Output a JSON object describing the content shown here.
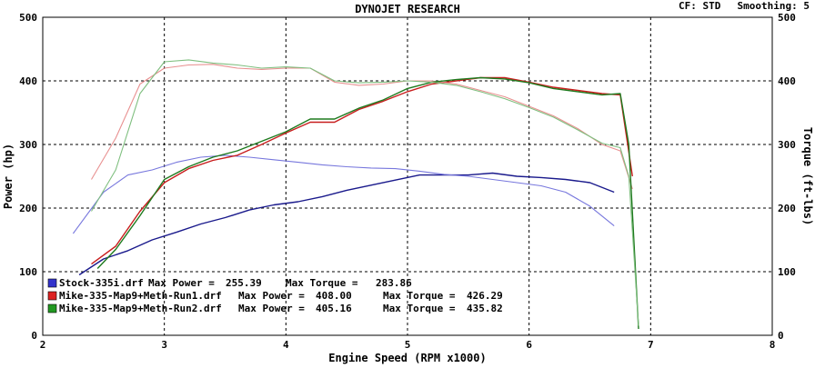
{
  "header": {
    "title": "DYNOJET RESEARCH",
    "cf_text": "CF: STD",
    "smoothing_text": "Smoothing: 5"
  },
  "chart_data": {
    "type": "line",
    "title": "DYNOJET RESEARCH",
    "xlabel": "Engine Speed (RPM x1000)",
    "ylabel": "Power (hp)",
    "y2label": "Torque (ft-lbs)",
    "xlim": [
      2,
      8
    ],
    "ylim": [
      0,
      500
    ],
    "y2lim": [
      0,
      500
    ],
    "x_ticks": [
      "2",
      "3",
      "4",
      "5",
      "6",
      "7",
      "8"
    ],
    "y_ticks": [
      "0",
      "100",
      "200",
      "300",
      "400",
      "500"
    ],
    "y2_ticks": [
      "0",
      "100",
      "200",
      "300",
      "400",
      "500"
    ],
    "grid": true,
    "legend_position": "bottom-left",
    "colors": {
      "stock": "#1a1a8c",
      "run1": "#c81e1e",
      "run2": "#1e7a1e",
      "grid": "#000000"
    },
    "legend": [
      {
        "file": "Stock-335i.drf",
        "max_power_label": "Max Power =",
        "max_power": "255.39",
        "max_torque_label": "Max Torque =",
        "max_torque": "283.86",
        "color": "#3333cc"
      },
      {
        "file": "Mike-335-Map9+Meth-Run1.drf",
        "max_power_label": "Max Power =",
        "max_power": "408.00",
        "max_torque_label": "Max Torque =",
        "max_torque": "426.29",
        "color": "#dd2222"
      },
      {
        "file": "Mike-335-Map9+Meth-Run2.drf",
        "max_power_label": "Max Power =",
        "max_power": "405.16",
        "max_torque_label": "Max Torque =",
        "max_torque": "435.82",
        "color": "#229922"
      }
    ],
    "series": [
      {
        "name": "Stock-335i.drf",
        "measure": "power",
        "color": "#1a1a8c",
        "points": [
          [
            2.3,
            95
          ],
          [
            2.5,
            120
          ],
          [
            2.7,
            133
          ],
          [
            2.9,
            150
          ],
          [
            3.1,
            162
          ],
          [
            3.3,
            175
          ],
          [
            3.5,
            185
          ],
          [
            3.7,
            197
          ],
          [
            3.9,
            205
          ],
          [
            4.1,
            210
          ],
          [
            4.3,
            218
          ],
          [
            4.5,
            228
          ],
          [
            4.7,
            236
          ],
          [
            4.9,
            244
          ],
          [
            5.1,
            252
          ],
          [
            5.3,
            252
          ],
          [
            5.5,
            252
          ],
          [
            5.7,
            255
          ],
          [
            5.9,
            250
          ],
          [
            6.1,
            248
          ],
          [
            6.3,
            245
          ],
          [
            6.5,
            240
          ],
          [
            6.7,
            225
          ]
        ]
      },
      {
        "name": "Stock-335i.drf",
        "measure": "torque",
        "color": "#7777dd",
        "points": [
          [
            2.25,
            160
          ],
          [
            2.5,
            225
          ],
          [
            2.7,
            252
          ],
          [
            2.9,
            260
          ],
          [
            3.1,
            272
          ],
          [
            3.3,
            280
          ],
          [
            3.5,
            283
          ],
          [
            3.7,
            280
          ],
          [
            3.9,
            276
          ],
          [
            4.1,
            272
          ],
          [
            4.3,
            268
          ],
          [
            4.5,
            265
          ],
          [
            4.7,
            263
          ],
          [
            4.9,
            262
          ],
          [
            5.1,
            258
          ],
          [
            5.3,
            253
          ],
          [
            5.5,
            250
          ],
          [
            5.7,
            245
          ],
          [
            5.9,
            240
          ],
          [
            6.1,
            235
          ],
          [
            6.3,
            225
          ],
          [
            6.5,
            203
          ],
          [
            6.7,
            172
          ]
        ]
      },
      {
        "name": "Mike-335-Map9+Meth-Run1.drf",
        "measure": "power",
        "color": "#c81e1e",
        "points": [
          [
            2.4,
            112
          ],
          [
            2.6,
            140
          ],
          [
            2.8,
            195
          ],
          [
            3.0,
            240
          ],
          [
            3.2,
            262
          ],
          [
            3.4,
            275
          ],
          [
            3.6,
            283
          ],
          [
            3.8,
            300
          ],
          [
            4.0,
            318
          ],
          [
            4.2,
            335
          ],
          [
            4.4,
            335
          ],
          [
            4.6,
            355
          ],
          [
            4.8,
            368
          ],
          [
            5.0,
            383
          ],
          [
            5.2,
            395
          ],
          [
            5.4,
            400
          ],
          [
            5.6,
            405
          ],
          [
            5.8,
            405
          ],
          [
            6.0,
            398
          ],
          [
            6.2,
            390
          ],
          [
            6.4,
            385
          ],
          [
            6.6,
            380
          ],
          [
            6.75,
            378
          ],
          [
            6.85,
            250
          ]
        ]
      },
      {
        "name": "Mike-335-Map9+Meth-Run1.drf",
        "measure": "torque",
        "color": "#e89090",
        "points": [
          [
            2.4,
            245
          ],
          [
            2.6,
            310
          ],
          [
            2.8,
            395
          ],
          [
            3.0,
            420
          ],
          [
            3.2,
            425
          ],
          [
            3.4,
            426
          ],
          [
            3.6,
            420
          ],
          [
            3.8,
            418
          ],
          [
            4.0,
            420
          ],
          [
            4.2,
            420
          ],
          [
            4.4,
            398
          ],
          [
            4.6,
            393
          ],
          [
            4.8,
            395
          ],
          [
            5.0,
            400
          ],
          [
            5.2,
            400
          ],
          [
            5.4,
            395
          ],
          [
            5.6,
            385
          ],
          [
            5.8,
            375
          ],
          [
            6.0,
            360
          ],
          [
            6.2,
            345
          ],
          [
            6.4,
            325
          ],
          [
            6.6,
            300
          ],
          [
            6.75,
            290
          ],
          [
            6.85,
            230
          ]
        ]
      },
      {
        "name": "Mike-335-Map9+Meth-Run2.drf",
        "measure": "power",
        "color": "#1e7a1e",
        "points": [
          [
            2.45,
            105
          ],
          [
            2.6,
            135
          ],
          [
            2.8,
            188
          ],
          [
            3.0,
            245
          ],
          [
            3.2,
            265
          ],
          [
            3.4,
            280
          ],
          [
            3.6,
            290
          ],
          [
            3.8,
            305
          ],
          [
            4.0,
            320
          ],
          [
            4.2,
            340
          ],
          [
            4.4,
            340
          ],
          [
            4.6,
            357
          ],
          [
            4.8,
            370
          ],
          [
            5.0,
            388
          ],
          [
            5.2,
            398
          ],
          [
            5.4,
            402
          ],
          [
            5.6,
            405
          ],
          [
            5.8,
            403
          ],
          [
            6.0,
            397
          ],
          [
            6.2,
            388
          ],
          [
            6.4,
            383
          ],
          [
            6.6,
            378
          ],
          [
            6.75,
            380
          ],
          [
            6.82,
            300
          ],
          [
            6.9,
            10
          ]
        ]
      },
      {
        "name": "Mike-335-Map9+Meth-Run2.drf",
        "measure": "torque",
        "color": "#7fbf7f",
        "points": [
          [
            2.4,
            195
          ],
          [
            2.6,
            260
          ],
          [
            2.8,
            380
          ],
          [
            3.0,
            430
          ],
          [
            3.2,
            433
          ],
          [
            3.4,
            428
          ],
          [
            3.6,
            425
          ],
          [
            3.8,
            420
          ],
          [
            4.0,
            422
          ],
          [
            4.2,
            420
          ],
          [
            4.4,
            400
          ],
          [
            4.6,
            397
          ],
          [
            4.8,
            398
          ],
          [
            5.0,
            400
          ],
          [
            5.2,
            398
          ],
          [
            5.4,
            393
          ],
          [
            5.6,
            383
          ],
          [
            5.8,
            372
          ],
          [
            6.0,
            358
          ],
          [
            6.2,
            343
          ],
          [
            6.4,
            323
          ],
          [
            6.6,
            302
          ],
          [
            6.75,
            295
          ],
          [
            6.82,
            250
          ],
          [
            6.9,
            15
          ]
        ]
      }
    ]
  }
}
